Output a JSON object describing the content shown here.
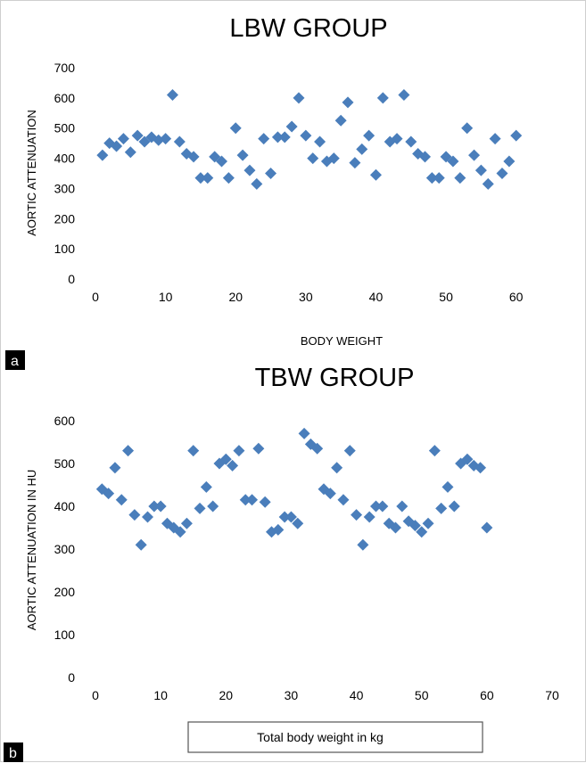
{
  "chart_data": [
    {
      "type": "scatter",
      "panel_label": "a",
      "title": "LBW GROUP",
      "xlabel": "BODY WEIGHT",
      "ylabel": "AORTIC ATTENUATION",
      "xlim": [
        0,
        65
      ],
      "ylim": [
        0,
        700
      ],
      "xticks": [
        0,
        10,
        20,
        30,
        40,
        50,
        60
      ],
      "yticks": [
        0,
        100,
        200,
        300,
        400,
        500,
        600,
        700
      ],
      "grid": false,
      "marker": "diamond",
      "color": "#4a7ebb",
      "series": [
        {
          "x": [
            1,
            2,
            3,
            4,
            5,
            6,
            7,
            8,
            9,
            10,
            11,
            12,
            13,
            14,
            15,
            16,
            17,
            18,
            19,
            20,
            21,
            22,
            23,
            24,
            25,
            26,
            27,
            28,
            29,
            30,
            31,
            32,
            33,
            34,
            35,
            36,
            37,
            38,
            39,
            40,
            41,
            42,
            43,
            44,
            45,
            46,
            47,
            48,
            49,
            50,
            51,
            52,
            53,
            54,
            55,
            56,
            57,
            58,
            59,
            60
          ],
          "y": [
            410,
            450,
            440,
            465,
            420,
            475,
            455,
            470,
            460,
            465,
            610,
            455,
            415,
            405,
            335,
            335,
            405,
            390,
            335,
            500,
            410,
            360,
            315,
            465,
            350,
            470,
            470,
            505,
            600,
            475,
            400,
            455,
            390,
            400,
            525,
            585,
            385,
            430,
            475,
            345,
            600,
            455,
            465,
            610,
            455,
            415,
            405,
            335,
            335,
            405,
            390,
            335,
            500,
            410,
            360,
            315,
            465,
            350,
            390,
            475
          ]
        }
      ]
    },
    {
      "type": "scatter",
      "panel_label": "b",
      "title": "TBW GROUP",
      "xlabel": "Total body weight in kg",
      "ylabel": "AORTIC ATTENUATION IN HU",
      "xlim": [
        0,
        70
      ],
      "ylim": [
        0,
        600
      ],
      "xticks": [
        0,
        10,
        20,
        30,
        40,
        50,
        60,
        70
      ],
      "yticks": [
        0,
        100,
        200,
        300,
        400,
        500,
        600
      ],
      "grid": false,
      "marker": "diamond",
      "color": "#4a7ebb",
      "series": [
        {
          "x": [
            1,
            2,
            3,
            4,
            5,
            6,
            7,
            8,
            9,
            10,
            11,
            12,
            13,
            14,
            15,
            16,
            17,
            18,
            19,
            20,
            21,
            22,
            23,
            24,
            25,
            26,
            27,
            28,
            29,
            30,
            31,
            32,
            33,
            34,
            35,
            36,
            37,
            38,
            39,
            40,
            41,
            42,
            43,
            44,
            45,
            46,
            47,
            48,
            49,
            50,
            51,
            52,
            53,
            54,
            55,
            56,
            57,
            58,
            59,
            60
          ],
          "y": [
            440,
            430,
            490,
            415,
            530,
            380,
            310,
            375,
            400,
            400,
            360,
            350,
            340,
            360,
            530,
            395,
            445,
            400,
            500,
            510,
            495,
            530,
            415,
            415,
            535,
            410,
            340,
            345,
            375,
            375,
            360,
            570,
            545,
            535,
            440,
            430,
            490,
            415,
            530,
            380,
            310,
            375,
            400,
            400,
            360,
            350,
            400,
            365,
            355,
            340,
            360,
            530,
            395,
            445,
            400,
            500,
            510,
            495,
            490,
            350
          ]
        }
      ]
    }
  ]
}
